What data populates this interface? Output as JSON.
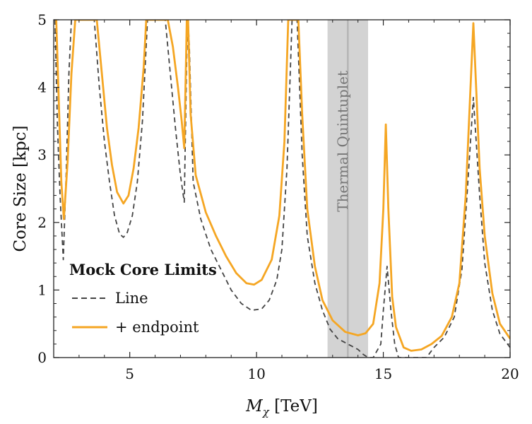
{
  "chart_data": {
    "type": "line",
    "xlabel": "M_χ [TeV]",
    "ylabel": "Core Size [kpc]",
    "xlim": [
      2,
      20
    ],
    "ylim": [
      0,
      5
    ],
    "x_ticks": [
      5,
      10,
      15,
      20
    ],
    "y_ticks": [
      0,
      1,
      2,
      3,
      4,
      5
    ],
    "grid": false,
    "legend": {
      "title": "Mock Core Limits",
      "placement": "lower-left",
      "entries": [
        "Line",
        "+ endpoint"
      ]
    },
    "band": {
      "label": "Thermal Quintuplet",
      "x_range": [
        12.8,
        14.4
      ],
      "center": 13.6,
      "color": "#d3d3d3"
    },
    "series": [
      {
        "name": "Line",
        "color": "#444444",
        "style": "dashed",
        "points": [
          [
            2.05,
            5.0
          ],
          [
            2.15,
            3.4
          ],
          [
            2.25,
            2.4
          ],
          [
            2.38,
            1.45
          ],
          [
            2.5,
            2.8
          ],
          [
            2.6,
            4.2
          ],
          [
            2.7,
            5.0
          ],
          [
            3.6,
            5.0
          ],
          [
            3.8,
            4.0
          ],
          [
            4.0,
            3.2
          ],
          [
            4.2,
            2.6
          ],
          [
            4.4,
            2.1
          ],
          [
            4.6,
            1.83
          ],
          [
            4.75,
            1.78
          ],
          [
            4.9,
            1.85
          ],
          [
            5.1,
            2.1
          ],
          [
            5.3,
            2.6
          ],
          [
            5.5,
            3.5
          ],
          [
            5.7,
            5.0
          ],
          [
            6.4,
            5.0
          ],
          [
            6.6,
            4.2
          ],
          [
            6.8,
            3.4
          ],
          [
            7.0,
            2.7
          ],
          [
            7.15,
            2.3
          ],
          [
            7.25,
            4.5
          ],
          [
            7.3,
            5.0
          ],
          [
            7.35,
            4.6
          ],
          [
            7.5,
            2.6
          ],
          [
            7.8,
            2.05
          ],
          [
            8.2,
            1.6
          ],
          [
            8.6,
            1.3
          ],
          [
            9.0,
            1.0
          ],
          [
            9.4,
            0.8
          ],
          [
            9.8,
            0.7
          ],
          [
            10.2,
            0.72
          ],
          [
            10.5,
            0.85
          ],
          [
            10.8,
            1.15
          ],
          [
            11.0,
            1.6
          ],
          [
            11.2,
            2.8
          ],
          [
            11.4,
            5.0
          ],
          [
            11.6,
            5.0
          ],
          [
            11.8,
            3.0
          ],
          [
            12.0,
            1.8
          ],
          [
            12.3,
            1.1
          ],
          [
            12.6,
            0.7
          ],
          [
            12.9,
            0.42
          ],
          [
            13.2,
            0.28
          ],
          [
            13.6,
            0.2
          ],
          [
            14.0,
            0.12
          ],
          [
            14.2,
            0.05
          ],
          [
            14.4,
            0.0
          ],
          [
            14.6,
            0.0
          ],
          [
            14.9,
            0.2
          ],
          [
            15.0,
            0.7
          ],
          [
            15.15,
            1.35
          ],
          [
            15.3,
            0.7
          ],
          [
            15.45,
            0.2
          ],
          [
            15.6,
            0.0
          ],
          [
            16.7,
            0.0
          ],
          [
            17.0,
            0.15
          ],
          [
            17.4,
            0.3
          ],
          [
            17.8,
            0.6
          ],
          [
            18.1,
            1.3
          ],
          [
            18.3,
            2.4
          ],
          [
            18.55,
            3.85
          ],
          [
            18.8,
            2.4
          ],
          [
            19.0,
            1.4
          ],
          [
            19.3,
            0.7
          ],
          [
            19.6,
            0.35
          ],
          [
            20.0,
            0.15
          ]
        ]
      },
      {
        "name": "+ endpoint",
        "color": "#f5a623",
        "style": "solid",
        "points": [
          [
            2.1,
            5.0
          ],
          [
            2.2,
            3.8
          ],
          [
            2.3,
            2.6
          ],
          [
            2.4,
            2.05
          ],
          [
            2.55,
            2.9
          ],
          [
            2.7,
            4.2
          ],
          [
            2.85,
            5.0
          ],
          [
            3.7,
            5.0
          ],
          [
            3.9,
            4.2
          ],
          [
            4.1,
            3.4
          ],
          [
            4.3,
            2.85
          ],
          [
            4.5,
            2.45
          ],
          [
            4.75,
            2.28
          ],
          [
            4.95,
            2.4
          ],
          [
            5.15,
            2.8
          ],
          [
            5.35,
            3.4
          ],
          [
            5.55,
            4.3
          ],
          [
            5.65,
            5.0
          ],
          [
            6.5,
            5.0
          ],
          [
            6.7,
            4.6
          ],
          [
            6.9,
            4.0
          ],
          [
            7.05,
            3.5
          ],
          [
            7.15,
            3.1
          ],
          [
            7.22,
            4.4
          ],
          [
            7.25,
            5.0
          ],
          [
            7.3,
            5.0
          ],
          [
            7.4,
            3.6
          ],
          [
            7.6,
            2.7
          ],
          [
            8.0,
            2.15
          ],
          [
            8.4,
            1.8
          ],
          [
            8.8,
            1.5
          ],
          [
            9.2,
            1.25
          ],
          [
            9.6,
            1.1
          ],
          [
            9.9,
            1.08
          ],
          [
            10.2,
            1.15
          ],
          [
            10.6,
            1.45
          ],
          [
            10.9,
            2.1
          ],
          [
            11.1,
            3.2
          ],
          [
            11.25,
            5.0
          ],
          [
            11.65,
            5.0
          ],
          [
            11.8,
            3.6
          ],
          [
            12.0,
            2.2
          ],
          [
            12.3,
            1.35
          ],
          [
            12.6,
            0.85
          ],
          [
            13.0,
            0.55
          ],
          [
            13.5,
            0.38
          ],
          [
            14.0,
            0.33
          ],
          [
            14.3,
            0.36
          ],
          [
            14.6,
            0.5
          ],
          [
            14.85,
            1.1
          ],
          [
            15.0,
            2.2
          ],
          [
            15.1,
            3.45
          ],
          [
            15.2,
            2.2
          ],
          [
            15.35,
            0.9
          ],
          [
            15.5,
            0.45
          ],
          [
            15.8,
            0.15
          ],
          [
            16.1,
            0.1
          ],
          [
            16.5,
            0.12
          ],
          [
            16.9,
            0.2
          ],
          [
            17.3,
            0.32
          ],
          [
            17.7,
            0.6
          ],
          [
            18.0,
            1.1
          ],
          [
            18.25,
            2.4
          ],
          [
            18.55,
            4.95
          ],
          [
            18.8,
            2.8
          ],
          [
            19.0,
            1.8
          ],
          [
            19.3,
            0.95
          ],
          [
            19.6,
            0.5
          ],
          [
            20.0,
            0.28
          ]
        ]
      }
    ]
  }
}
